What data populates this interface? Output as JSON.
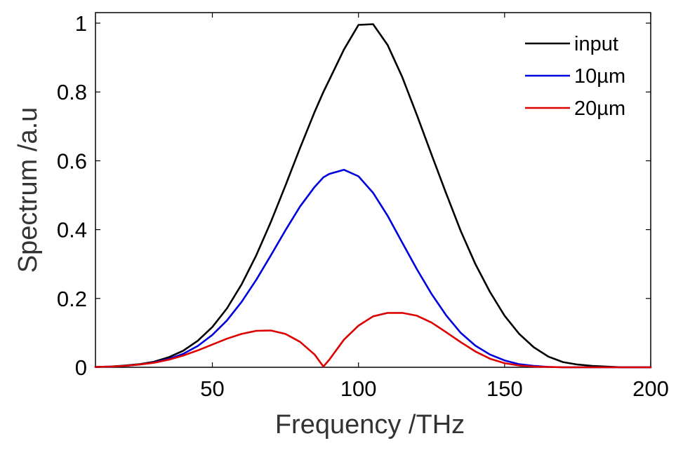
{
  "chart_data": {
    "type": "line",
    "title": "",
    "xlabel": "Frequency /THz",
    "ylabel": "Spectrum /a.u",
    "xlim": [
      10,
      200
    ],
    "ylim": [
      0,
      1
    ],
    "x_ticks": [
      50,
      100,
      150,
      200
    ],
    "y_ticks": [
      0,
      0.2,
      0.4,
      0.6,
      0.8,
      1
    ],
    "x_tick_labels": [
      "50",
      "100",
      "150",
      "200"
    ],
    "y_tick_labels": [
      "0",
      "0.2",
      "0.4",
      "0.6",
      "0.8",
      "1"
    ],
    "grid": false,
    "legend_position": "top-right",
    "x": [
      10,
      15,
      20,
      25,
      30,
      35,
      40,
      45,
      50,
      55,
      60,
      65,
      70,
      75,
      80,
      85,
      88,
      90,
      95,
      100,
      105,
      110,
      115,
      120,
      125,
      130,
      135,
      140,
      145,
      150,
      155,
      160,
      165,
      170,
      175,
      180,
      185,
      190,
      195,
      200
    ],
    "series": [
      {
        "name": "input",
        "color": "#000000",
        "values": [
          0.001,
          0.002,
          0.005,
          0.009,
          0.016,
          0.029,
          0.048,
          0.077,
          0.117,
          0.171,
          0.241,
          0.325,
          0.422,
          0.528,
          0.637,
          0.742,
          0.8,
          0.835,
          0.923,
          0.995,
          0.997,
          0.936,
          0.843,
          0.733,
          0.618,
          0.505,
          0.396,
          0.3,
          0.219,
          0.15,
          0.097,
          0.058,
          0.031,
          0.015,
          0.008,
          0.004,
          0.002,
          0.0,
          0.0,
          0.0
        ]
      },
      {
        "name": "10µm",
        "color": "#0000dd",
        "values": [
          0.001,
          0.002,
          0.004,
          0.008,
          0.014,
          0.024,
          0.039,
          0.062,
          0.094,
          0.136,
          0.19,
          0.254,
          0.325,
          0.398,
          0.467,
          0.524,
          0.552,
          0.562,
          0.574,
          0.555,
          0.507,
          0.44,
          0.362,
          0.285,
          0.213,
          0.151,
          0.1,
          0.063,
          0.037,
          0.02,
          0.009,
          0.004,
          0.001,
          0.0,
          0.0,
          0.0,
          0.0,
          0.0,
          0.0,
          0.0
        ]
      },
      {
        "name": "20µm",
        "color": "#dd0000",
        "values": [
          0.001,
          0.002,
          0.004,
          0.008,
          0.013,
          0.022,
          0.034,
          0.049,
          0.066,
          0.083,
          0.097,
          0.106,
          0.107,
          0.097,
          0.074,
          0.037,
          0.002,
          0.022,
          0.08,
          0.121,
          0.148,
          0.158,
          0.158,
          0.15,
          0.13,
          0.102,
          0.073,
          0.046,
          0.025,
          0.012,
          0.005,
          0.002,
          0.001,
          0.0,
          0.0,
          0.0,
          0.0,
          0.0,
          0.0,
          0.0
        ]
      }
    ]
  }
}
